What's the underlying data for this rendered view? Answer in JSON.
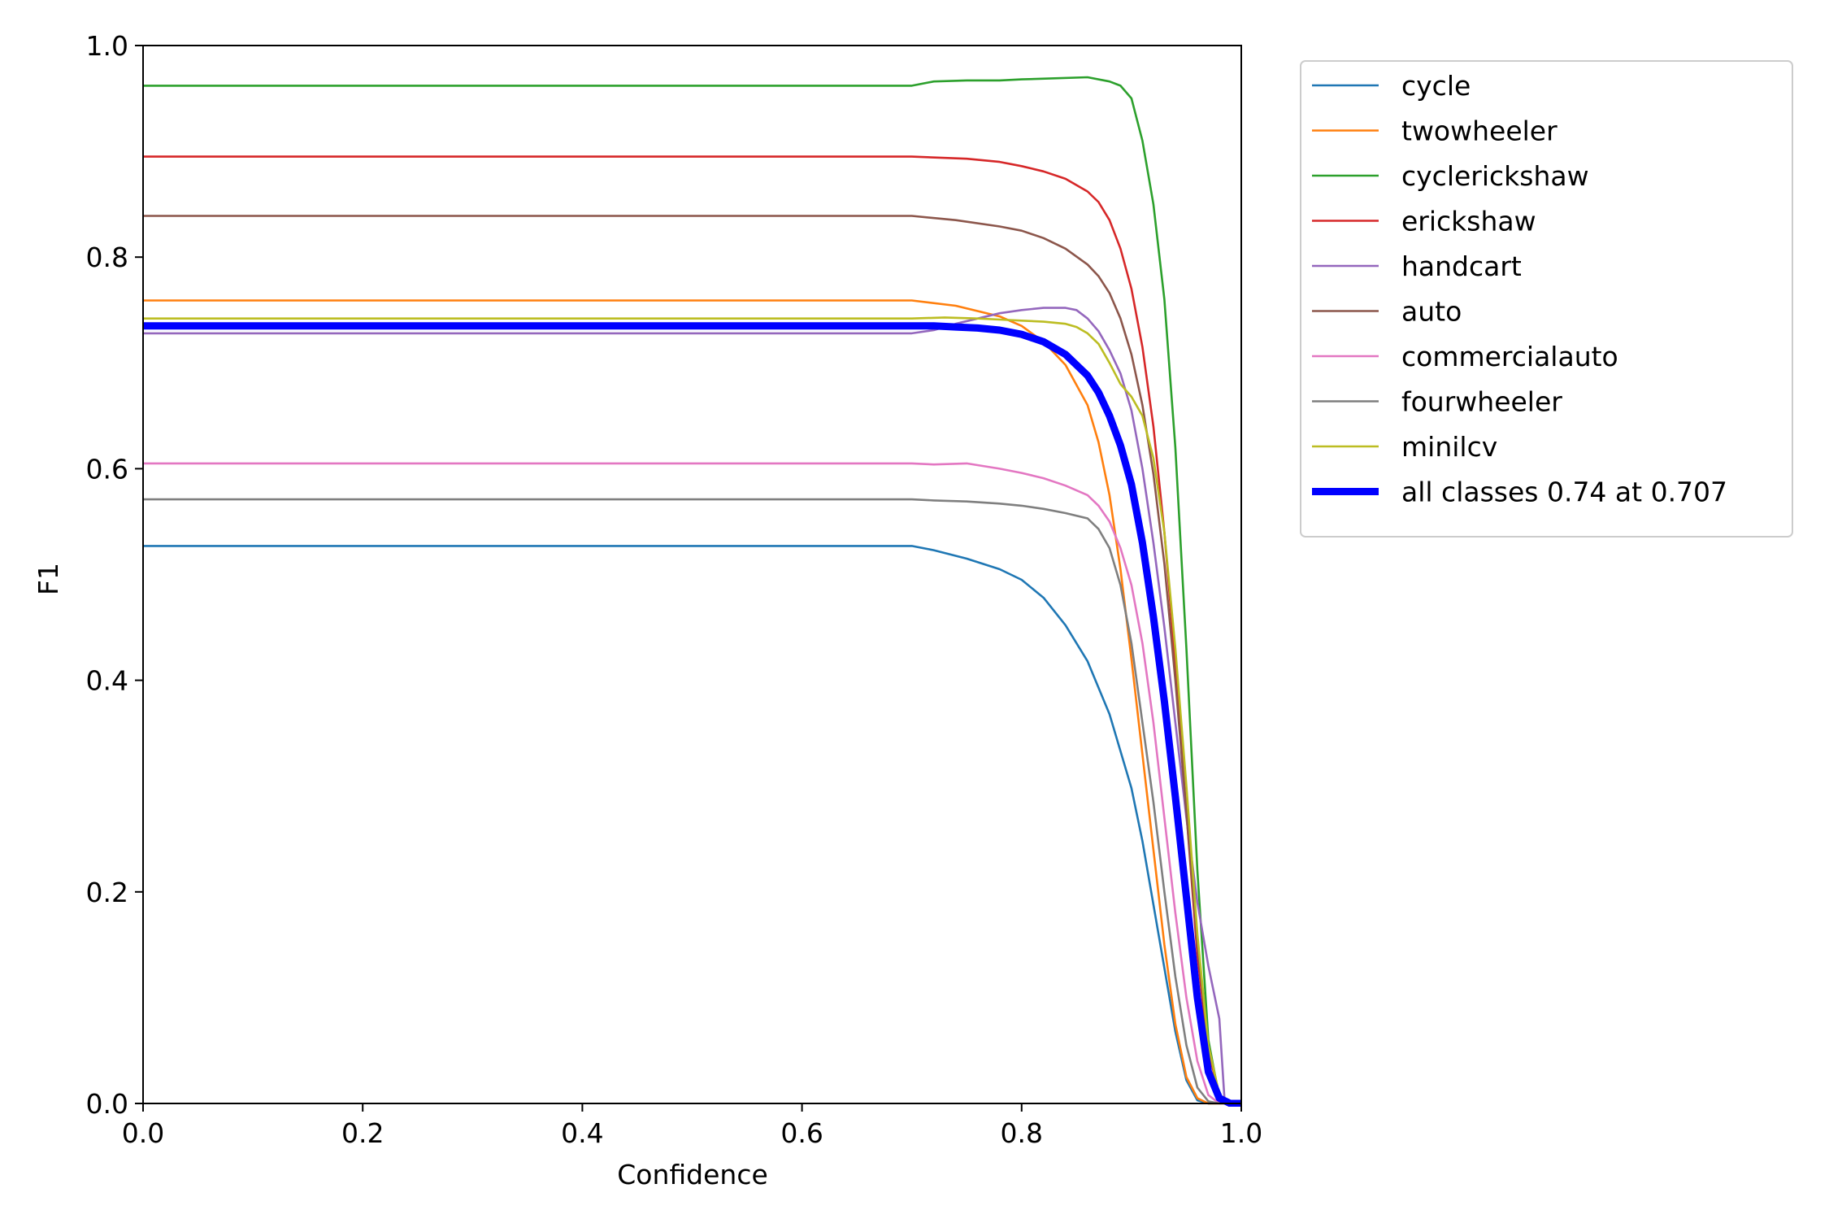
{
  "chart_data": {
    "type": "line",
    "title": "",
    "xlabel": "Confidence",
    "ylabel": "F1",
    "xlim": [
      0.0,
      1.0
    ],
    "ylim": [
      0.0,
      1.0
    ],
    "xticks": [
      "0.0",
      "0.2",
      "0.4",
      "0.6",
      "0.8",
      "1.0"
    ],
    "yticks": [
      "0.0",
      "0.2",
      "0.4",
      "0.6",
      "0.8",
      "1.0"
    ],
    "grid": false,
    "legend_position": "outside-upper-right",
    "series": [
      {
        "name": "cycle",
        "color": "#1f77b4",
        "emphasis": false,
        "points": [
          [
            0,
            0.527
          ],
          [
            0.7,
            0.527
          ],
          [
            0.72,
            0.523
          ],
          [
            0.75,
            0.515
          ],
          [
            0.78,
            0.505
          ],
          [
            0.8,
            0.495
          ],
          [
            0.82,
            0.478
          ],
          [
            0.84,
            0.452
          ],
          [
            0.86,
            0.418
          ],
          [
            0.88,
            0.368
          ],
          [
            0.9,
            0.298
          ],
          [
            0.91,
            0.248
          ],
          [
            0.92,
            0.188
          ],
          [
            0.93,
            0.128
          ],
          [
            0.94,
            0.068
          ],
          [
            0.95,
            0.022
          ],
          [
            0.96,
            0.003
          ],
          [
            0.97,
            0.0
          ],
          [
            1.0,
            0.0
          ]
        ]
      },
      {
        "name": "twowheeler",
        "color": "#ff7f0e",
        "emphasis": false,
        "points": [
          [
            0,
            0.759
          ],
          [
            0.7,
            0.759
          ],
          [
            0.74,
            0.754
          ],
          [
            0.78,
            0.744
          ],
          [
            0.8,
            0.735
          ],
          [
            0.82,
            0.72
          ],
          [
            0.84,
            0.698
          ],
          [
            0.86,
            0.66
          ],
          [
            0.87,
            0.625
          ],
          [
            0.88,
            0.575
          ],
          [
            0.89,
            0.505
          ],
          [
            0.9,
            0.42
          ],
          [
            0.91,
            0.33
          ],
          [
            0.92,
            0.24
          ],
          [
            0.93,
            0.15
          ],
          [
            0.94,
            0.075
          ],
          [
            0.95,
            0.025
          ],
          [
            0.96,
            0.005
          ],
          [
            0.97,
            0.0
          ],
          [
            1.0,
            0.0
          ]
        ]
      },
      {
        "name": "cyclerickshaw",
        "color": "#2ca02c",
        "emphasis": false,
        "points": [
          [
            0,
            0.962
          ],
          [
            0.7,
            0.962
          ],
          [
            0.72,
            0.966
          ],
          [
            0.75,
            0.967
          ],
          [
            0.78,
            0.967
          ],
          [
            0.8,
            0.968
          ],
          [
            0.83,
            0.969
          ],
          [
            0.86,
            0.97
          ],
          [
            0.88,
            0.966
          ],
          [
            0.89,
            0.962
          ],
          [
            0.9,
            0.95
          ],
          [
            0.91,
            0.91
          ],
          [
            0.92,
            0.85
          ],
          [
            0.93,
            0.76
          ],
          [
            0.94,
            0.62
          ],
          [
            0.95,
            0.43
          ],
          [
            0.96,
            0.22
          ],
          [
            0.97,
            0.06
          ],
          [
            0.98,
            0.005
          ],
          [
            0.99,
            0.0
          ],
          [
            1.0,
            0.0
          ]
        ]
      },
      {
        "name": "erickshaw",
        "color": "#d62728",
        "emphasis": false,
        "points": [
          [
            0,
            0.895
          ],
          [
            0.7,
            0.895
          ],
          [
            0.75,
            0.893
          ],
          [
            0.78,
            0.89
          ],
          [
            0.8,
            0.886
          ],
          [
            0.82,
            0.881
          ],
          [
            0.84,
            0.874
          ],
          [
            0.86,
            0.862
          ],
          [
            0.87,
            0.852
          ],
          [
            0.88,
            0.835
          ],
          [
            0.89,
            0.808
          ],
          [
            0.9,
            0.77
          ],
          [
            0.91,
            0.715
          ],
          [
            0.92,
            0.64
          ],
          [
            0.93,
            0.54
          ],
          [
            0.94,
            0.415
          ],
          [
            0.95,
            0.275
          ],
          [
            0.96,
            0.14
          ],
          [
            0.97,
            0.05
          ],
          [
            0.98,
            0.008
          ],
          [
            0.99,
            0.0
          ],
          [
            1.0,
            0.0
          ]
        ]
      },
      {
        "name": "handcart",
        "color": "#9467bd",
        "emphasis": false,
        "points": [
          [
            0,
            0.728
          ],
          [
            0.7,
            0.728
          ],
          [
            0.72,
            0.731
          ],
          [
            0.74,
            0.737
          ],
          [
            0.76,
            0.742
          ],
          [
            0.78,
            0.747
          ],
          [
            0.8,
            0.75
          ],
          [
            0.82,
            0.752
          ],
          [
            0.84,
            0.752
          ],
          [
            0.85,
            0.75
          ],
          [
            0.86,
            0.742
          ],
          [
            0.87,
            0.73
          ],
          [
            0.88,
            0.712
          ],
          [
            0.89,
            0.69
          ],
          [
            0.9,
            0.655
          ],
          [
            0.91,
            0.6
          ],
          [
            0.92,
            0.53
          ],
          [
            0.93,
            0.45
          ],
          [
            0.94,
            0.36
          ],
          [
            0.95,
            0.27
          ],
          [
            0.96,
            0.19
          ],
          [
            0.97,
            0.13
          ],
          [
            0.98,
            0.08
          ],
          [
            0.985,
            0.0
          ],
          [
            1.0,
            0.0
          ]
        ]
      },
      {
        "name": "auto",
        "color": "#8c564b",
        "emphasis": false,
        "points": [
          [
            0,
            0.839
          ],
          [
            0.7,
            0.839
          ],
          [
            0.74,
            0.835
          ],
          [
            0.78,
            0.829
          ],
          [
            0.8,
            0.825
          ],
          [
            0.82,
            0.818
          ],
          [
            0.84,
            0.808
          ],
          [
            0.86,
            0.793
          ],
          [
            0.87,
            0.782
          ],
          [
            0.88,
            0.766
          ],
          [
            0.89,
            0.742
          ],
          [
            0.9,
            0.708
          ],
          [
            0.91,
            0.66
          ],
          [
            0.92,
            0.595
          ],
          [
            0.93,
            0.51
          ],
          [
            0.94,
            0.4
          ],
          [
            0.95,
            0.275
          ],
          [
            0.96,
            0.15
          ],
          [
            0.97,
            0.055
          ],
          [
            0.98,
            0.008
          ],
          [
            0.99,
            0.0
          ],
          [
            1.0,
            0.0
          ]
        ]
      },
      {
        "name": "commercialauto",
        "color": "#e377c2",
        "emphasis": false,
        "points": [
          [
            0,
            0.605
          ],
          [
            0.7,
            0.605
          ],
          [
            0.72,
            0.604
          ],
          [
            0.75,
            0.605
          ],
          [
            0.78,
            0.6
          ],
          [
            0.8,
            0.596
          ],
          [
            0.82,
            0.591
          ],
          [
            0.84,
            0.584
          ],
          [
            0.86,
            0.575
          ],
          [
            0.87,
            0.565
          ],
          [
            0.88,
            0.55
          ],
          [
            0.89,
            0.525
          ],
          [
            0.9,
            0.49
          ],
          [
            0.91,
            0.435
          ],
          [
            0.92,
            0.36
          ],
          [
            0.93,
            0.27
          ],
          [
            0.94,
            0.18
          ],
          [
            0.95,
            0.1
          ],
          [
            0.96,
            0.04
          ],
          [
            0.97,
            0.008
          ],
          [
            0.98,
            0.0
          ],
          [
            1.0,
            0.0
          ]
        ]
      },
      {
        "name": "fourwheeler",
        "color": "#7f7f7f",
        "emphasis": false,
        "points": [
          [
            0,
            0.571
          ],
          [
            0.7,
            0.571
          ],
          [
            0.72,
            0.57
          ],
          [
            0.75,
            0.569
          ],
          [
            0.78,
            0.567
          ],
          [
            0.8,
            0.565
          ],
          [
            0.82,
            0.562
          ],
          [
            0.84,
            0.558
          ],
          [
            0.86,
            0.553
          ],
          [
            0.87,
            0.543
          ],
          [
            0.88,
            0.525
          ],
          [
            0.89,
            0.49
          ],
          [
            0.9,
            0.435
          ],
          [
            0.91,
            0.36
          ],
          [
            0.92,
            0.285
          ],
          [
            0.93,
            0.2
          ],
          [
            0.94,
            0.12
          ],
          [
            0.95,
            0.055
          ],
          [
            0.96,
            0.015
          ],
          [
            0.97,
            0.002
          ],
          [
            0.98,
            0.0
          ],
          [
            1.0,
            0.0
          ]
        ]
      },
      {
        "name": "minilcv",
        "color": "#bcbd22",
        "emphasis": false,
        "points": [
          [
            0,
            0.742
          ],
          [
            0.7,
            0.742
          ],
          [
            0.73,
            0.743
          ],
          [
            0.76,
            0.742
          ],
          [
            0.78,
            0.741
          ],
          [
            0.8,
            0.74
          ],
          [
            0.82,
            0.739
          ],
          [
            0.84,
            0.737
          ],
          [
            0.85,
            0.734
          ],
          [
            0.86,
            0.728
          ],
          [
            0.87,
            0.718
          ],
          [
            0.88,
            0.7
          ],
          [
            0.89,
            0.68
          ],
          [
            0.9,
            0.668
          ],
          [
            0.91,
            0.65
          ],
          [
            0.92,
            0.61
          ],
          [
            0.93,
            0.54
          ],
          [
            0.94,
            0.43
          ],
          [
            0.95,
            0.3
          ],
          [
            0.96,
            0.16
          ],
          [
            0.97,
            0.055
          ],
          [
            0.98,
            0.008
          ],
          [
            0.99,
            0.0
          ],
          [
            1.0,
            0.0
          ]
        ]
      },
      {
        "name": "all classes 0.74 at 0.707",
        "color": "#0000ff",
        "emphasis": true,
        "points": [
          [
            0,
            0.735
          ],
          [
            0.7,
            0.735
          ],
          [
            0.72,
            0.735
          ],
          [
            0.74,
            0.734
          ],
          [
            0.76,
            0.733
          ],
          [
            0.78,
            0.731
          ],
          [
            0.8,
            0.727
          ],
          [
            0.82,
            0.72
          ],
          [
            0.84,
            0.708
          ],
          [
            0.86,
            0.688
          ],
          [
            0.87,
            0.672
          ],
          [
            0.88,
            0.65
          ],
          [
            0.89,
            0.622
          ],
          [
            0.9,
            0.585
          ],
          [
            0.91,
            0.53
          ],
          [
            0.92,
            0.46
          ],
          [
            0.93,
            0.38
          ],
          [
            0.94,
            0.29
          ],
          [
            0.95,
            0.195
          ],
          [
            0.96,
            0.1
          ],
          [
            0.97,
            0.03
          ],
          [
            0.98,
            0.005
          ],
          [
            0.99,
            0.0
          ],
          [
            1.0,
            0.0
          ]
        ]
      }
    ]
  }
}
